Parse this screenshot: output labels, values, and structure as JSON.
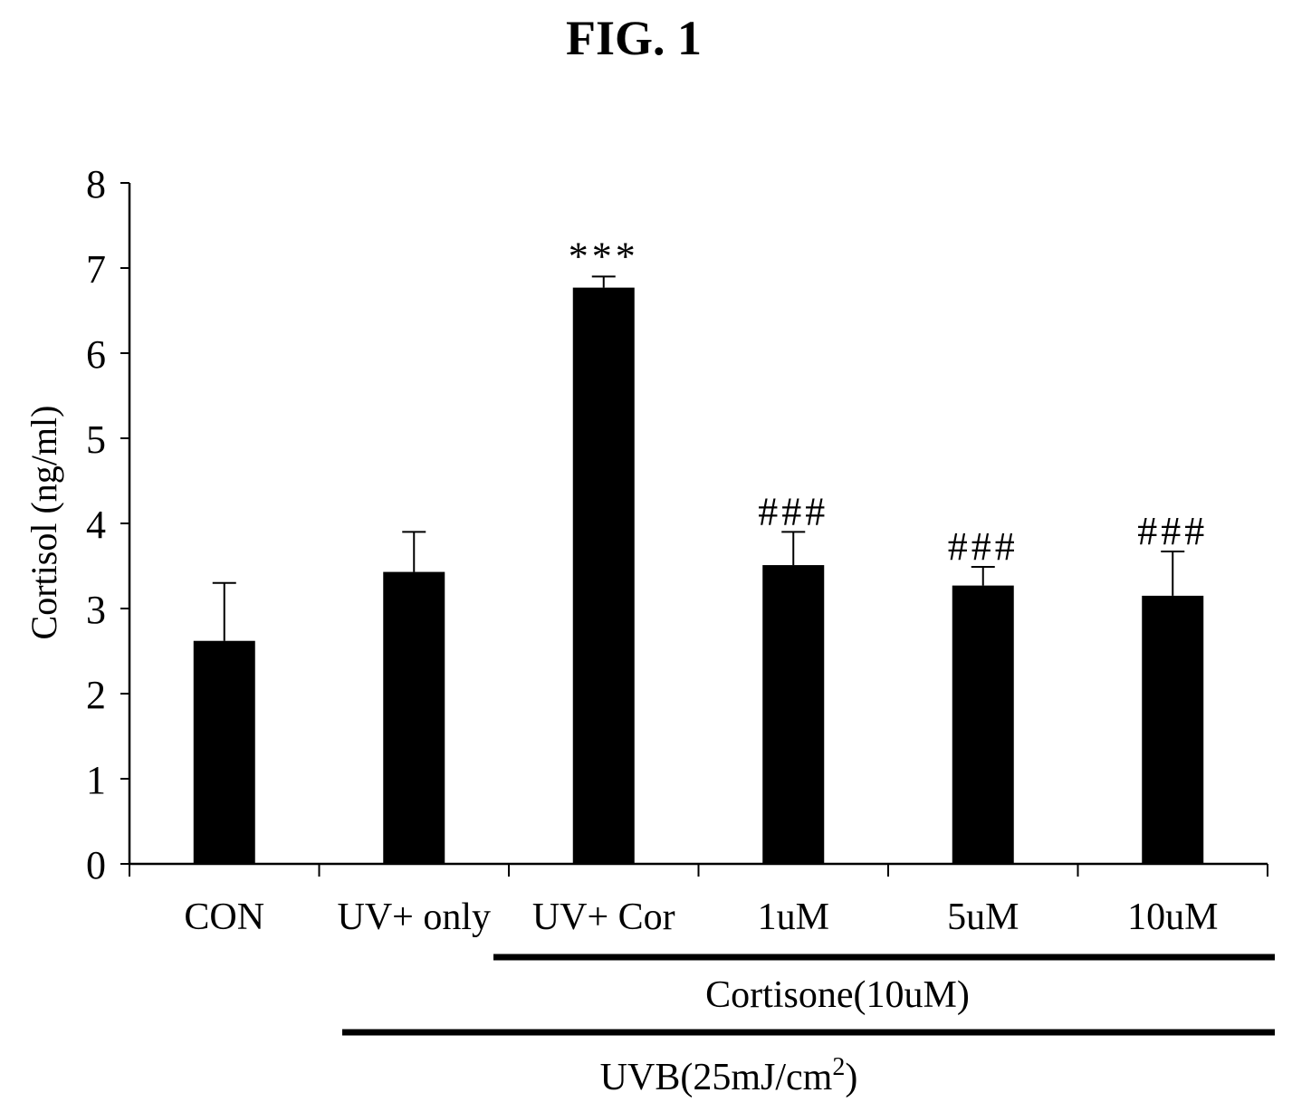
{
  "figure_title": "FIG. 1",
  "chart_data": {
    "type": "bar",
    "title": "FIG. 1",
    "ylabel": "Cortisol (ng/ml)",
    "xlabel": "",
    "ylim": [
      0,
      8
    ],
    "yticks": [
      "0",
      "1",
      "2",
      "3",
      "4",
      "5",
      "6",
      "7",
      "8"
    ],
    "categories": [
      "CON",
      "UV+ only",
      "UV+ Cor",
      "1uM",
      "5uM",
      "10uM"
    ],
    "values": [
      2.62,
      3.43,
      6.77,
      3.51,
      3.27,
      3.15
    ],
    "error": [
      0.68,
      0.47,
      0.13,
      0.39,
      0.22,
      0.52
    ],
    "annotations": [
      "",
      "",
      "***",
      "###",
      "###",
      "###"
    ],
    "bar_color": "#000000",
    "grid": false,
    "groups": [
      {
        "label": "Cortisone(10uM)",
        "from_category": 2,
        "to_category": 5
      },
      {
        "label": "UVB(25mJ/cm",
        "superscript": "2",
        "suffix": ")",
        "from_category": 1,
        "to_category": 5
      }
    ]
  }
}
